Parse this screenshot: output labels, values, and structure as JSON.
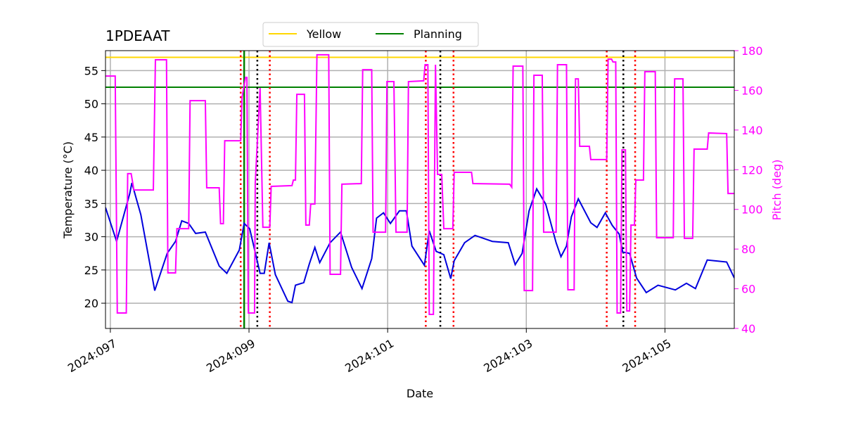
{
  "chart_data": {
    "type": "line",
    "title": "1PDEAAT",
    "xlabel": "Date",
    "ylabel": "Temperature (°C)",
    "y2label": "Pitch (deg)",
    "y2color": "#ff00ff",
    "grid": true,
    "legend": "upper center",
    "xlim": [
      96.93,
      106.0
    ],
    "xticks": [
      {
        "value": 97,
        "label": "2024:097"
      },
      {
        "value": 99,
        "label": "2024:099"
      },
      {
        "value": 101,
        "label": "2024:101"
      },
      {
        "value": 103,
        "label": "2024:103"
      },
      {
        "value": 105,
        "label": "2024:105"
      }
    ],
    "ylim": [
      16.2,
      58
    ],
    "yticks": [
      20,
      25,
      30,
      35,
      40,
      45,
      50,
      55
    ],
    "y2lim": [
      40,
      180
    ],
    "y2ticks": [
      40,
      60,
      80,
      100,
      120,
      140,
      160,
      180
    ],
    "hlines": [
      {
        "name": "Yellow",
        "color": "#ffd700",
        "value": 57
      },
      {
        "name": "Planning",
        "color": "#008000",
        "value": 52.5
      }
    ],
    "vlines": [
      {
        "color": "#008000",
        "style": "solid",
        "x": [
          98.93
        ]
      },
      {
        "color": "#ff0000",
        "style": "dotted",
        "x": [
          98.88,
          99.3,
          101.55,
          101.95,
          104.16,
          104.57
        ]
      },
      {
        "color": "#000000",
        "style": "dotted",
        "x": [
          99.12,
          101.76,
          104.4
        ]
      }
    ],
    "series": [
      {
        "color": "#0000dd",
        "axis": "y",
        "x": [
          96.93,
          97.09,
          97.28,
          97.31,
          97.44,
          97.64,
          97.82,
          97.94,
          98.03,
          98.13,
          98.23,
          98.37,
          98.57,
          98.68,
          98.86,
          98.93,
          99.01,
          99.16,
          99.22,
          99.29,
          99.38,
          99.56,
          99.62,
          99.67,
          99.79,
          99.87,
          99.95,
          100.02,
          100.17,
          100.32,
          100.48,
          100.63,
          100.77,
          100.84,
          100.94,
          101.04,
          101.17,
          101.27,
          101.35,
          101.53,
          101.6,
          101.7,
          101.81,
          101.91,
          101.96,
          102.11,
          102.26,
          102.51,
          102.74,
          102.84,
          102.94,
          103.04,
          103.15,
          103.28,
          103.43,
          103.5,
          103.58,
          103.65,
          103.75,
          103.93,
          104.02,
          104.14,
          104.24,
          104.34,
          104.39,
          104.49,
          104.59,
          104.73,
          104.9,
          105.15,
          105.31,
          105.44,
          105.61,
          105.89,
          106.0
        ],
        "values": [
          34.4,
          29.3,
          36.5,
          38.1,
          33.3,
          21.9,
          27.5,
          29.3,
          32.4,
          32.0,
          30.5,
          30.7,
          25.6,
          24.5,
          28.0,
          32.0,
          31.2,
          24.5,
          24.5,
          29.1,
          24.3,
          20.3,
          20.1,
          22.7,
          23.1,
          25.9,
          28.4,
          26.1,
          29.1,
          30.7,
          25.4,
          22.2,
          26.7,
          32.8,
          33.6,
          32.0,
          33.9,
          33.9,
          28.6,
          25.7,
          30.9,
          27.8,
          27.3,
          23.7,
          26.4,
          29.1,
          30.2,
          29.3,
          29.1,
          25.8,
          27.5,
          33.9,
          37.2,
          34.9,
          29.1,
          27.0,
          28.6,
          33.0,
          35.7,
          32.1,
          31.4,
          33.6,
          31.7,
          30.4,
          27.7,
          27.5,
          23.8,
          21.6,
          22.7,
          22.0,
          23.0,
          22.2,
          26.5,
          26.2,
          23.8
        ]
      },
      {
        "color": "#ff00ff",
        "axis": "y2",
        "x": [
          96.93,
          97.07,
          97.1,
          97.23,
          97.25,
          97.3,
          97.34,
          97.62,
          97.65,
          97.81,
          97.83,
          97.94,
          97.96,
          98.13,
          98.15,
          98.37,
          98.39,
          98.57,
          98.59,
          98.63,
          98.65,
          98.88,
          98.9,
          98.95,
          98.97,
          98.99,
          99.08,
          99.09,
          99.16,
          99.2,
          99.3,
          99.32,
          99.62,
          99.64,
          99.67,
          99.69,
          99.8,
          99.82,
          99.87,
          99.89,
          99.95,
          99.98,
          100.15,
          100.17,
          100.32,
          100.34,
          100.62,
          100.64,
          100.77,
          100.79,
          100.97,
          100.99,
          101.09,
          101.12,
          101.28,
          101.3,
          101.52,
          101.54,
          101.58,
          101.6,
          101.66,
          101.69,
          101.72,
          101.78,
          101.81,
          101.94,
          101.96,
          102.21,
          102.23,
          102.76,
          102.79,
          102.81,
          102.95,
          102.97,
          103.09,
          103.11,
          103.23,
          103.25,
          103.43,
          103.45,
          103.58,
          103.6,
          103.69,
          103.71,
          103.75,
          103.77,
          103.91,
          103.93,
          104.16,
          104.18,
          104.23,
          104.25,
          104.29,
          104.31,
          104.36,
          104.38,
          104.43,
          104.45,
          104.49,
          104.51,
          104.56,
          104.58,
          104.69,
          104.71,
          104.86,
          104.88,
          105.12,
          105.14,
          105.26,
          105.28,
          105.4,
          105.42,
          105.61,
          105.63,
          105.89,
          105.91,
          106.0
        ],
        "values": [
          167.2,
          167.2,
          47.8,
          47.8,
          118,
          118,
          109.8,
          109.8,
          175.4,
          175.4,
          68,
          68,
          90.3,
          90.3,
          154.8,
          154.8,
          110.9,
          110.9,
          92.8,
          92.8,
          134.6,
          134.6,
          156.6,
          166.5,
          166.5,
          47.8,
          47.8,
          113.4,
          161.2,
          91,
          91,
          111.6,
          112,
          114.8,
          114.8,
          158,
          158,
          92.1,
          92.1,
          102.7,
          102.7,
          177.9,
          177.9,
          67.3,
          67.3,
          112.7,
          113,
          170.4,
          170.4,
          88.5,
          88.5,
          164.4,
          164.4,
          88.5,
          88.5,
          164.4,
          164.8,
          172.9,
          172.9,
          47.1,
          47.1,
          172.9,
          117.6,
          117.6,
          90.3,
          90.3,
          118.7,
          118.7,
          113,
          112.7,
          111.2,
          172.2,
          172.2,
          59.1,
          59.1,
          167.6,
          167.6,
          88.5,
          88.5,
          172.9,
          172.9,
          59.5,
          59.5,
          165.8,
          165.8,
          131.8,
          131.8,
          125.1,
          125.1,
          175.7,
          175.7,
          174.3,
          174.3,
          47.8,
          47.8,
          130,
          130,
          48.8,
          48.8,
          92.1,
          92.1,
          114.8,
          114.8,
          169.4,
          169.4,
          85.7,
          85.7,
          165.8,
          165.8,
          85.4,
          85.4,
          130.4,
          130.4,
          138.5,
          138.2,
          108,
          108
        ]
      }
    ]
  }
}
